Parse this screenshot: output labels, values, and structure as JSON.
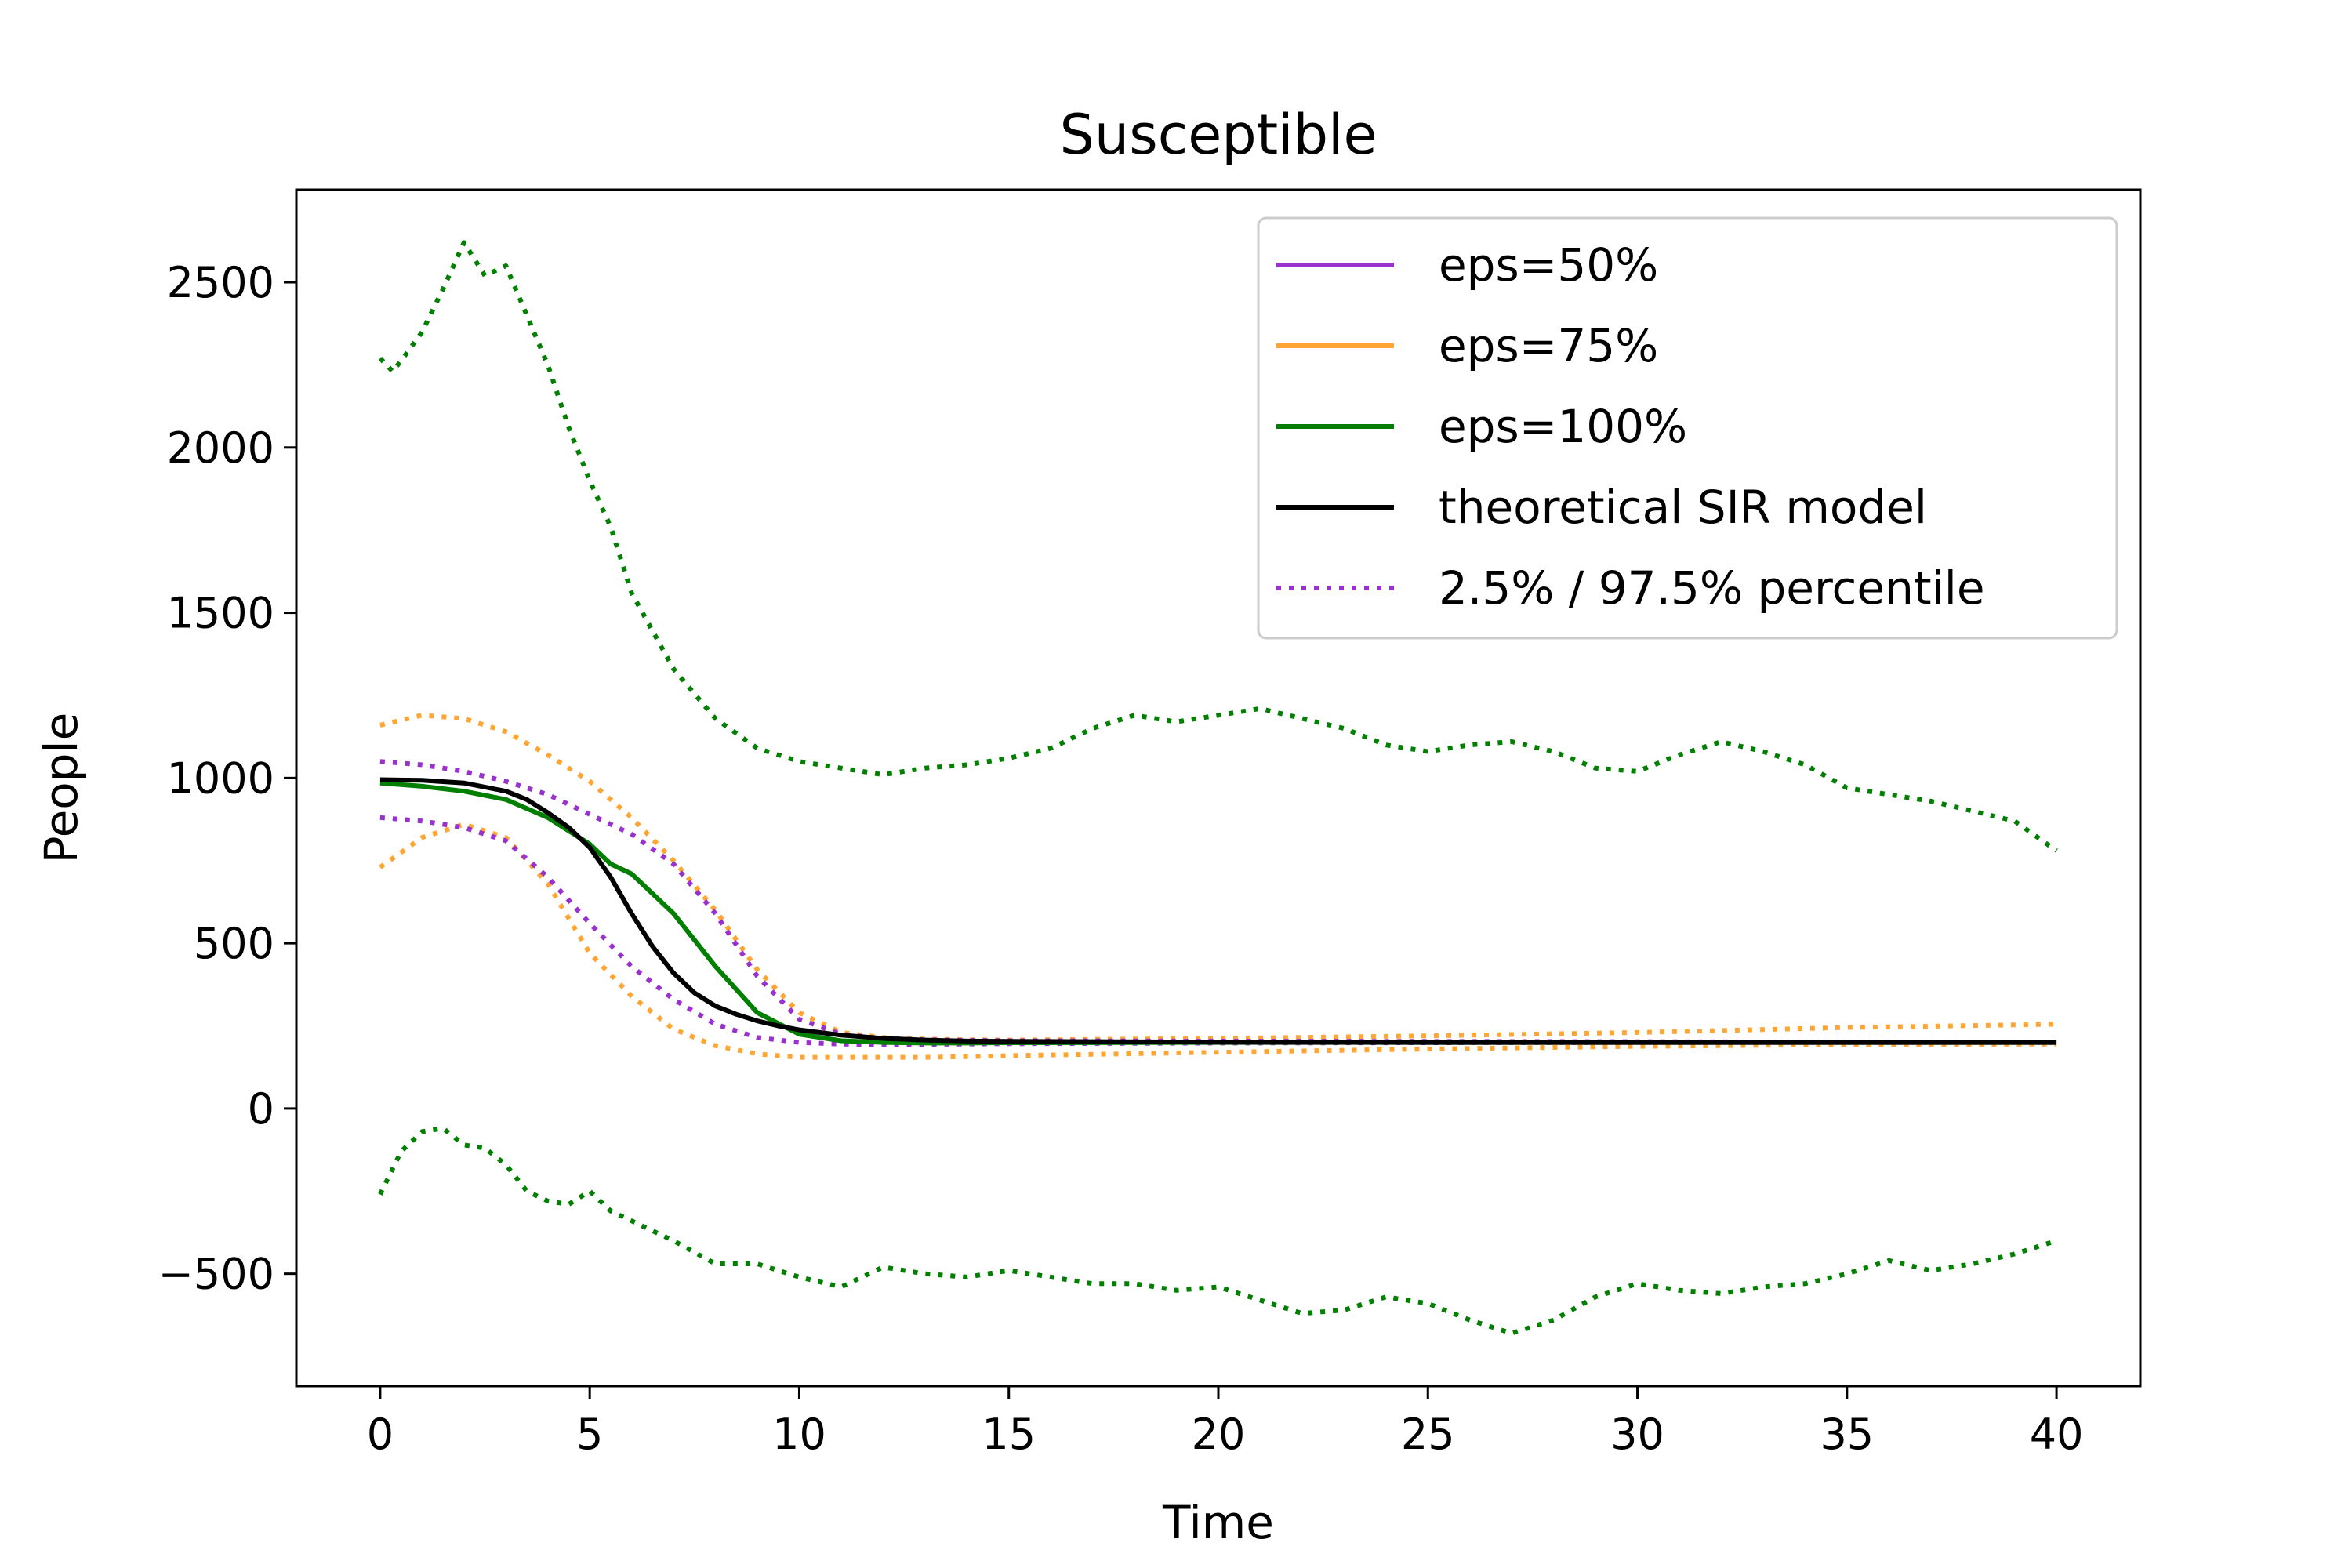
{
  "chart_data": {
    "type": "line",
    "title": "Susceptible",
    "xlabel": "Time",
    "ylabel": "People",
    "xlim": [
      -2,
      42
    ],
    "ylim": [
      -840,
      2780
    ],
    "xticks": [
      0,
      5,
      10,
      15,
      20,
      25,
      30,
      35,
      40
    ],
    "yticks": [
      -500,
      0,
      500,
      1000,
      1500,
      2000,
      2500
    ],
    "ytick_labels": [
      "−500",
      "0",
      "500",
      "1000",
      "1500",
      "2000",
      "2500"
    ],
    "xtick_labels": [
      "0",
      "5",
      "10",
      "15",
      "20",
      "25",
      "30",
      "35",
      "40"
    ],
    "grid": false,
    "legend_position": "top-right",
    "legend": [
      {
        "label": "eps=50%",
        "color": "#9932cc",
        "style": "solid"
      },
      {
        "label": "eps=75%",
        "color": "#ffa533",
        "style": "solid"
      },
      {
        "label": "eps=100%",
        "color": "#007f00",
        "style": "solid"
      },
      {
        "label": "theoretical SIR model",
        "color": "#000000",
        "style": "solid"
      },
      {
        "label": "2.5% / 97.5% percentile",
        "color": "#9932cc",
        "style": "dotted"
      }
    ],
    "series": [
      {
        "key": "eps100_upper",
        "color": "#007f00",
        "style": "dotted",
        "x": [
          0,
          0.3,
          0.6,
          1,
          1.5,
          2,
          2.5,
          3,
          3.5,
          4,
          4.5,
          5,
          5.5,
          6,
          7,
          8,
          9,
          10,
          11,
          12,
          13,
          14,
          15,
          16,
          17,
          18,
          19,
          20,
          21,
          22,
          23,
          24,
          25,
          26,
          27,
          28,
          29,
          30,
          31,
          32,
          33,
          34,
          35,
          36,
          37,
          38,
          39,
          40
        ],
        "values": [
          2270,
          2230,
          2280,
          2350,
          2480,
          2620,
          2520,
          2550,
          2400,
          2250,
          2060,
          1900,
          1760,
          1560,
          1330,
          1180,
          1090,
          1050,
          1030,
          1010,
          1030,
          1040,
          1060,
          1090,
          1150,
          1190,
          1170,
          1190,
          1210,
          1180,
          1150,
          1100,
          1080,
          1100,
          1110,
          1080,
          1030,
          1020,
          1070,
          1110,
          1080,
          1040,
          970,
          950,
          930,
          900,
          870,
          780
        ]
      },
      {
        "key": "eps100_lower",
        "color": "#007f00",
        "style": "dotted",
        "x": [
          0,
          0.5,
          1,
          1.5,
          2,
          2.5,
          3,
          3.5,
          4,
          4.5,
          5,
          5.5,
          6,
          7,
          8,
          9,
          10,
          11,
          12,
          13,
          14,
          15,
          16,
          17,
          18,
          19,
          20,
          21,
          22,
          23,
          24,
          25,
          26,
          27,
          28,
          29,
          30,
          31,
          32,
          33,
          34,
          35,
          36,
          37,
          38,
          39,
          40
        ],
        "values": [
          -260,
          -130,
          -70,
          -60,
          -110,
          -120,
          -170,
          -250,
          -280,
          -290,
          -250,
          -310,
          -340,
          -400,
          -470,
          -470,
          -510,
          -540,
          -480,
          -500,
          -510,
          -490,
          -510,
          -530,
          -530,
          -550,
          -540,
          -580,
          -620,
          -610,
          -570,
          -590,
          -640,
          -680,
          -640,
          -570,
          -530,
          -550,
          -560,
          -540,
          -530,
          -500,
          -460,
          -490,
          -470,
          -440,
          -400
        ]
      },
      {
        "key": "eps75_upper",
        "color": "#ffa533",
        "style": "dotted",
        "x": [
          0,
          1,
          2,
          3,
          4,
          5,
          6,
          7,
          8,
          9,
          10,
          11,
          12,
          13,
          14,
          15,
          20,
          25,
          30,
          35,
          40
        ],
        "values": [
          1160,
          1190,
          1180,
          1140,
          1070,
          990,
          880,
          750,
          600,
          420,
          290,
          230,
          215,
          210,
          208,
          207,
          212,
          220,
          230,
          245,
          255
        ]
      },
      {
        "key": "eps75_lower",
        "color": "#ffa533",
        "style": "dotted",
        "x": [
          0,
          1,
          2,
          3,
          4,
          5,
          6,
          7,
          8,
          9,
          10,
          11,
          12,
          13,
          14,
          15,
          20,
          25,
          30,
          35,
          40
        ],
        "values": [
          730,
          820,
          860,
          820,
          680,
          470,
          340,
          240,
          190,
          165,
          155,
          155,
          155,
          155,
          157,
          160,
          170,
          180,
          188,
          193,
          195
        ]
      },
      {
        "key": "eps50_upper",
        "color": "#9932cc",
        "style": "dotted",
        "x": [
          0,
          1,
          2,
          3,
          4,
          5,
          6,
          7,
          8,
          9,
          10,
          11,
          12,
          13,
          14,
          15,
          20,
          25,
          30,
          35,
          40
        ],
        "values": [
          1050,
          1040,
          1020,
          990,
          950,
          890,
          830,
          740,
          590,
          400,
          270,
          225,
          212,
          208,
          206,
          205,
          204,
          203,
          202,
          201,
          200
        ]
      },
      {
        "key": "eps50_lower",
        "color": "#9932cc",
        "style": "dotted",
        "x": [
          0,
          1,
          2,
          3,
          4,
          5,
          6,
          7,
          8,
          9,
          10,
          11,
          12,
          13,
          14,
          15,
          20,
          25,
          30,
          35,
          40
        ],
        "values": [
          880,
          870,
          850,
          810,
          700,
          560,
          430,
          330,
          255,
          215,
          200,
          195,
          193,
          194,
          195,
          196,
          198,
          199,
          200,
          200,
          200
        ]
      },
      {
        "key": "eps100_mean",
        "color": "#007f00",
        "style": "solid",
        "x": [
          0,
          1,
          2,
          3,
          4,
          5,
          5.5,
          6,
          7,
          8,
          9,
          10,
          11,
          12,
          13,
          14,
          15,
          20,
          25,
          30,
          35,
          40
        ],
        "values": [
          985,
          975,
          960,
          935,
          880,
          800,
          740,
          710,
          590,
          430,
          290,
          225,
          205,
          200,
          198,
          198,
          199,
          200,
          200,
          200,
          200,
          200
        ]
      },
      {
        "key": "sir_model",
        "color": "#000000",
        "style": "solid",
        "x": [
          0,
          1,
          2,
          3,
          3.5,
          4,
          4.5,
          5,
          5.5,
          6,
          6.5,
          7,
          7.5,
          8,
          8.5,
          9,
          9.5,
          10,
          11,
          12,
          13,
          14,
          15,
          20,
          25,
          30,
          35,
          40
        ],
        "values": [
          995,
          993,
          985,
          960,
          935,
          895,
          850,
          790,
          700,
          590,
          490,
          410,
          350,
          310,
          285,
          265,
          250,
          238,
          222,
          212,
          207,
          204,
          203,
          201,
          200,
          200,
          200,
          200
        ]
      }
    ]
  }
}
